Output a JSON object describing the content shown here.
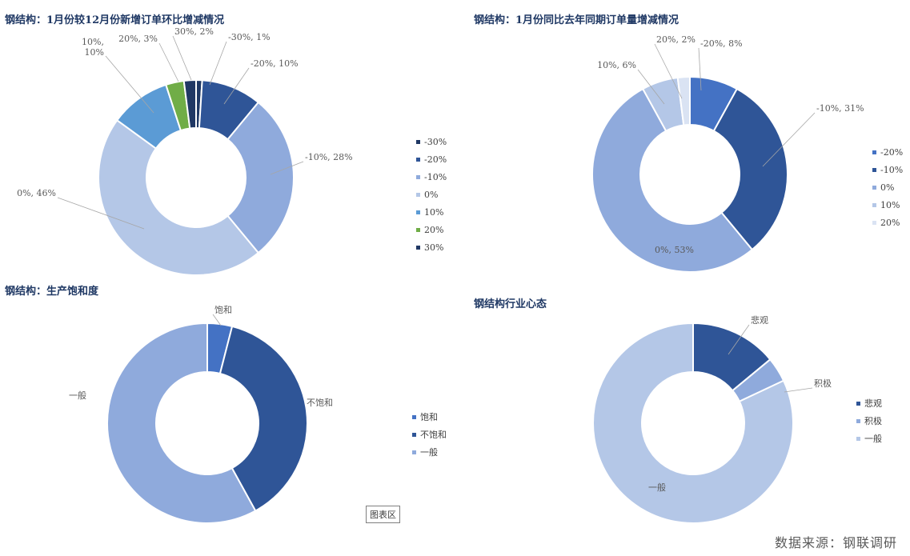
{
  "colors": {
    "c_neg30": "#1F3864",
    "c_neg20": "#2F5597",
    "c_neg10": "#8FAADC",
    "c_0": "#B4C7E7",
    "c_10": "#5B9BD5",
    "c_20": "#70AD47",
    "c_30": "#203864",
    "ch2_neg20": "#4472C4",
    "ch2_neg10": "#2F5597",
    "ch2_0": "#8FAADC",
    "ch2_10": "#B4C7E7",
    "ch2_20": "#DAE3F3",
    "sat_yes": "#4472C4",
    "sat_no": "#2F5597",
    "sat_mid": "#8FAADC",
    "mood_bad": "#2F5597",
    "mood_good": "#8FAADC",
    "mood_mid": "#B4C7E7"
  },
  "chart_area_label": "图表区",
  "source": "数据来源：钢联调研",
  "chart_data": [
    {
      "type": "pie",
      "donut": true,
      "title": "钢结构：1月份较12月份新增订单环比增减情况",
      "labels": [
        "-30%",
        "-20%",
        "-10%",
        "0%",
        "10%",
        "20%",
        "30%"
      ],
      "values": [
        1,
        10,
        28,
        46,
        10,
        3,
        2
      ],
      "slice_labels": [
        "-30%, 1%",
        "-20%, 10%",
        "-10%, 28%",
        "0%, 46%",
        "10%, 10%",
        "20%, 3%",
        "30%, 2%"
      ],
      "color_keys": [
        "c_neg30",
        "c_neg20",
        "c_neg10",
        "c_0",
        "c_10",
        "c_20",
        "c_30"
      ],
      "legend": [
        "-30%",
        "-20%",
        "-10%",
        "0%",
        "10%",
        "20%",
        "30%"
      ],
      "legend_position": "right"
    },
    {
      "type": "pie",
      "donut": true,
      "title": "钢结构：1月份同比去年同期订单量增减情况",
      "labels": [
        "-20%",
        "-10%",
        "0%",
        "10%",
        "20%"
      ],
      "values": [
        8,
        31,
        53,
        6,
        2
      ],
      "slice_labels": [
        "-20%, 8%",
        "-10%, 31%",
        "0%, 53%",
        "10%, 6%",
        "20%, 2%"
      ],
      "color_keys": [
        "ch2_neg20",
        "ch2_neg10",
        "ch2_0",
        "ch2_10",
        "ch2_20"
      ],
      "legend": [
        "-20%",
        "-10%",
        "0%",
        "10%",
        "20%"
      ],
      "legend_position": "right"
    },
    {
      "type": "pie",
      "donut": true,
      "title": "钢结构：生产饱和度",
      "labels": [
        "饱和",
        "不饱和",
        "一般"
      ],
      "values": [
        4,
        38,
        58
      ],
      "slice_labels": [
        "饱和",
        "不饱和",
        "一般"
      ],
      "color_keys": [
        "sat_yes",
        "sat_no",
        "sat_mid"
      ],
      "legend": [
        "饱和",
        "不饱和",
        "一般"
      ],
      "legend_position": "right"
    },
    {
      "type": "pie",
      "donut": true,
      "title": "钢结构行业心态",
      "labels": [
        "悲观",
        "积极",
        "一般"
      ],
      "values": [
        14,
        4,
        82
      ],
      "slice_labels": [
        "悲观",
        "积极",
        "一般"
      ],
      "color_keys": [
        "mood_bad",
        "mood_good",
        "mood_mid"
      ],
      "legend": [
        "悲观",
        "积极",
        "一般"
      ],
      "legend_position": "right"
    }
  ]
}
